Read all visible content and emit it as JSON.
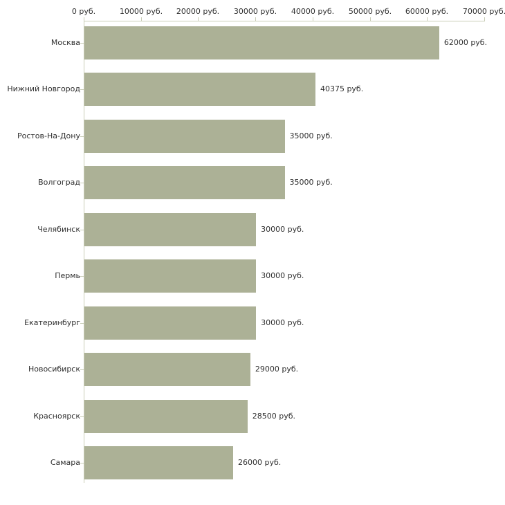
{
  "chart_data": {
    "type": "bar",
    "orientation": "horizontal",
    "title": "",
    "categories": [
      "Москва",
      "Нижний Новгород",
      "Ростов-На-Дону",
      "Волгоград",
      "Челябинск",
      "Пермь",
      "Екатеринбург",
      "Новосибирск",
      "Красноярск",
      "Самара"
    ],
    "values": [
      62000,
      40375,
      35000,
      35000,
      30000,
      30000,
      30000,
      29000,
      28500,
      26000
    ],
    "value_labels": [
      "62000 руб.",
      "40375 руб.",
      "35000 руб.",
      "35000 руб.",
      "30000 руб.",
      "30000 руб.",
      "30000 руб.",
      "29000 руб.",
      "28500 руб.",
      "26000 руб."
    ],
    "x_axis": {
      "position": "top",
      "range": [
        0,
        70000
      ],
      "ticks": [
        0,
        10000,
        20000,
        30000,
        40000,
        50000,
        60000,
        70000
      ],
      "tick_labels": [
        "0 руб.",
        "10000 руб.",
        "20000 руб.",
        "30000 руб.",
        "40000 руб.",
        "50000 руб.",
        "60000 руб.",
        "70000 руб."
      ]
    },
    "grid": false,
    "legend": false,
    "colors": {
      "bar": "#acb196",
      "axis": "#c8ccb6",
      "text": "#2e2e2e",
      "background": "#ffffff"
    }
  }
}
